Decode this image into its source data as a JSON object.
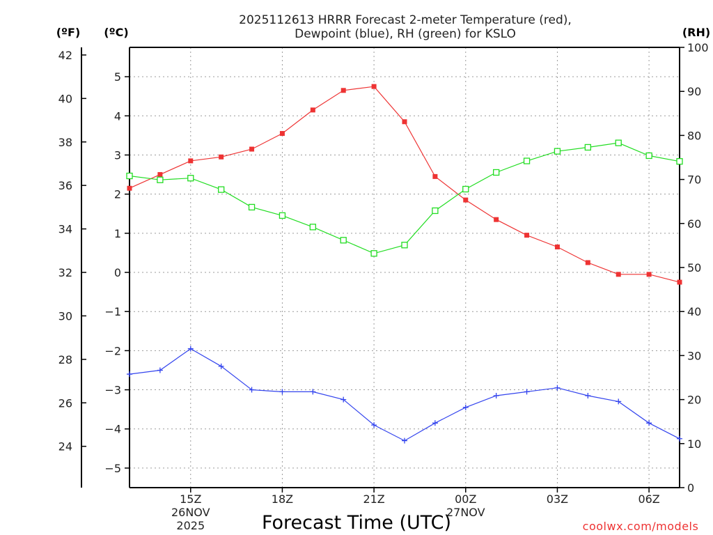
{
  "chart_data": {
    "type": "line",
    "title_line1": "2025112613 HRRR Forecast 2-meter Temperature (red),",
    "title_line2": "Dewpoint (blue), RH (green) for KSLO",
    "xlabel": "Forecast Time (UTC)",
    "units": {
      "fahrenheit": "(ºF)",
      "celsius": "(ºC)",
      "rh": "(RH)"
    },
    "credit": "coolwx.com/models",
    "x_hours": [
      13,
      14,
      15,
      16,
      17,
      18,
      19,
      20,
      21,
      22,
      23,
      24,
      25,
      26,
      27,
      28,
      29,
      30,
      31
    ],
    "x_range": [
      13,
      31
    ],
    "x_ticks": [
      {
        "hour": 15,
        "label": "15Z",
        "date": "26NOV",
        "year": "2025"
      },
      {
        "hour": 18,
        "label": "18Z"
      },
      {
        "hour": 21,
        "label": "21Z"
      },
      {
        "hour": 24,
        "label": "00Z",
        "date": "27NOV"
      },
      {
        "hour": 27,
        "label": "03Z"
      },
      {
        "hour": 30,
        "label": "06Z"
      }
    ],
    "celsius_axis": {
      "range": [
        -5.5,
        5.75
      ],
      "ticks": [
        5,
        4,
        3,
        2,
        1,
        0,
        -1,
        -2,
        -3,
        -4,
        -5
      ]
    },
    "fahrenheit_axis": {
      "ticks": [
        42,
        40,
        38,
        36,
        34,
        32,
        30,
        28,
        26,
        24
      ]
    },
    "rh_axis": {
      "range": [
        0,
        100
      ],
      "ticks": [
        100,
        90,
        80,
        70,
        60,
        50,
        40,
        30,
        20,
        10,
        0
      ]
    },
    "grid": true,
    "series": [
      {
        "name": "Temperature",
        "axis": "celsius",
        "color": "#ee3333",
        "marker": "filled-square",
        "values": [
          2.15,
          2.5,
          2.85,
          2.95,
          3.15,
          3.55,
          4.15,
          4.65,
          4.75,
          3.85,
          2.45,
          1.85,
          1.35,
          0.95,
          0.65,
          0.25,
          -0.05,
          -0.05,
          -0.25
        ]
      },
      {
        "name": "Dewpoint",
        "axis": "celsius",
        "color": "#3344ee",
        "marker": "plus",
        "values": [
          -2.6,
          -2.5,
          -1.95,
          -2.4,
          -3.0,
          -3.05,
          -3.05,
          -3.25,
          -3.9,
          -4.3,
          -3.85,
          -3.45,
          -3.15,
          -3.05,
          -2.95,
          -3.15,
          -3.3,
          -3.85,
          -4.25
        ]
      },
      {
        "name": "RH",
        "axis": "rh",
        "color": "#22dd22",
        "marker": "open-square",
        "values": [
          70.8,
          69.9,
          70.3,
          67.7,
          63.7,
          61.8,
          59.2,
          56.2,
          53.2,
          55.1,
          62.9,
          67.8,
          71.6,
          74.2,
          76.4,
          77.3,
          78.3,
          75.4,
          74.1
        ]
      }
    ]
  }
}
